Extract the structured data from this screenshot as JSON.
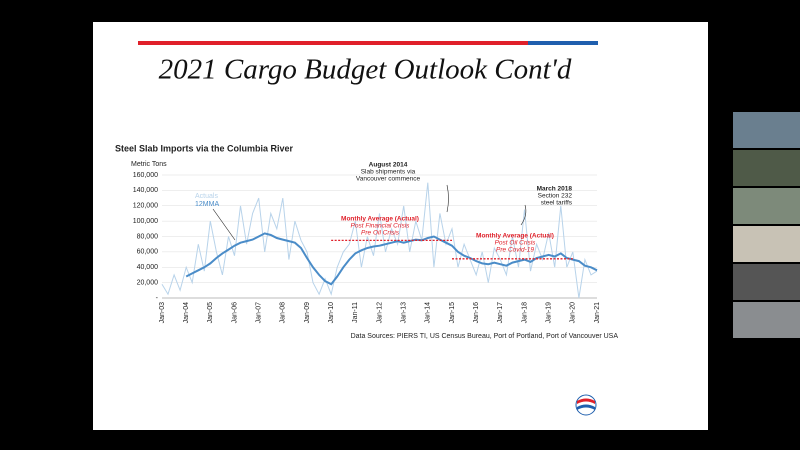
{
  "slide": {
    "title": "2021 Cargo Budget Outlook Cont'd"
  },
  "chart_data": {
    "type": "line",
    "title": "Steel Slab Imports via the Columbia River",
    "y_label": "Metric Tons",
    "source": "Data Sources: PIERS TI, US Census Bureau, Port of Portland, Port of Vancouver USA",
    "categories": [
      "Jan-03",
      null,
      null,
      null,
      "Jan-04",
      null,
      null,
      null,
      "Jan-05",
      null,
      null,
      null,
      "Jan-06",
      null,
      null,
      null,
      "Jan-07",
      null,
      null,
      null,
      "Jan-08",
      null,
      null,
      null,
      "Jan-09",
      null,
      null,
      null,
      "Jan-10",
      null,
      null,
      null,
      "Jan-11",
      null,
      null,
      null,
      "Jan-12",
      null,
      null,
      null,
      "Jan-13",
      null,
      null,
      null,
      "Jan-14",
      null,
      null,
      null,
      "Jan-15",
      null,
      null,
      null,
      "Jan-16",
      null,
      null,
      null,
      "Jan-17",
      null,
      null,
      null,
      "Jan-18",
      null,
      null,
      null,
      "Jan-19",
      null,
      null,
      null,
      "Jan-20",
      null,
      null,
      null,
      "Jan-21"
    ],
    "series": [
      {
        "name": "Actuals",
        "color": "#b8d3ea",
        "values": [
          18000,
          5000,
          30000,
          10000,
          40000,
          20000,
          70000,
          35000,
          100000,
          60000,
          30000,
          80000,
          55000,
          120000,
          70000,
          110000,
          130000,
          60000,
          110000,
          90000,
          130000,
          50000,
          100000,
          75000,
          60000,
          20000,
          5000,
          25000,
          5000,
          40000,
          60000,
          70000,
          100000,
          40000,
          80000,
          55000,
          110000,
          60000,
          90000,
          70000,
          120000,
          60000,
          100000,
          75000,
          150000,
          40000,
          110000,
          70000,
          90000,
          40000,
          70000,
          50000,
          30000,
          60000,
          20000,
          65000,
          50000,
          30000,
          80000,
          40000,
          115000,
          35000,
          70000,
          50000,
          85000,
          40000,
          120000,
          40000,
          60000,
          0,
          50000,
          30000,
          35000
        ]
      },
      {
        "name": "12MMA",
        "color": "#4a8cc8",
        "values": [
          null,
          null,
          null,
          null,
          28000,
          32000,
          36000,
          40000,
          45000,
          52000,
          58000,
          63000,
          68000,
          72000,
          74000,
          76000,
          80000,
          84000,
          82000,
          78000,
          76000,
          74000,
          72000,
          65000,
          52000,
          40000,
          30000,
          22000,
          18000,
          28000,
          40000,
          50000,
          58000,
          62000,
          65000,
          67000,
          68000,
          70000,
          72000,
          74000,
          72000,
          74000,
          76000,
          75000,
          78000,
          80000,
          76000,
          72000,
          68000,
          60000,
          55000,
          52000,
          48000,
          45000,
          44000,
          46000,
          44000,
          42000,
          46000,
          48000,
          50000,
          47000,
          52000,
          54000,
          56000,
          54000,
          58000,
          52000,
          50000,
          48000,
          42000,
          40000,
          36000
        ]
      }
    ],
    "ylim": [
      0,
      160000
    ],
    "yticks": [
      {
        "value": 0,
        "label": "-"
      },
      {
        "value": 20000,
        "label": "20,000"
      },
      {
        "value": 40000,
        "label": "40,000"
      },
      {
        "value": 60000,
        "label": "60,000"
      },
      {
        "value": 80000,
        "label": "80,000"
      },
      {
        "value": 100000,
        "label": "100,000"
      },
      {
        "value": 120000,
        "label": "120,000"
      },
      {
        "value": 140000,
        "label": "140,000"
      },
      {
        "value": 160000,
        "label": "160,000"
      }
    ],
    "grid": true,
    "reference_lines": [
      {
        "label": "Monthly Average (Actual)",
        "note": [
          "Post Financial Crisis",
          "Pre Oil Crisis"
        ],
        "value": 75000,
        "from": "Jan-10",
        "to": "Jan-15",
        "color": "#e0202a"
      },
      {
        "label": "Monthly Average (Actual)",
        "note": [
          "Post Oil Crisis",
          "Pre Covid-19"
        ],
        "value": 51000,
        "from": "Jan-15",
        "to": "Jan-20",
        "color": "#e0202a"
      }
    ],
    "annotations": [
      {
        "title": "August 2014",
        "text": [
          "Slab shipments via",
          "Vancouver commence"
        ]
      },
      {
        "title": "March 2018",
        "text": [
          "Section 232",
          "steel tariffs"
        ]
      }
    ]
  }
}
